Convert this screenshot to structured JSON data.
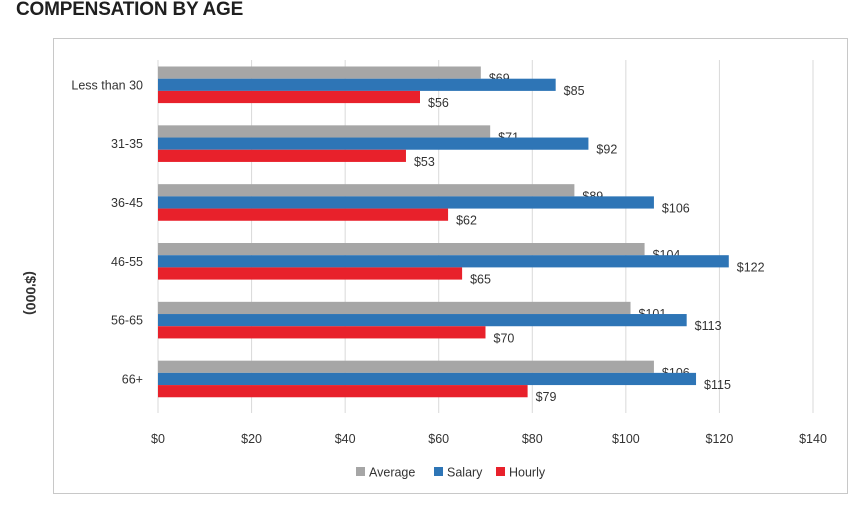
{
  "page": {
    "title": "COMPENSATION BY AGE",
    "y_side_label": "($'000)"
  },
  "colors": {
    "Average": "#a6a6a6",
    "Salary": "#2e75b6",
    "Hourly": "#e8212b",
    "grid": "#d9d9d9"
  },
  "chart_data": {
    "type": "bar",
    "orientation": "horizontal",
    "title": "COMPENSATION BY AGE",
    "categories": [
      "Less than 30",
      "31-35",
      "36-45",
      "46-55",
      "56-65",
      "66+"
    ],
    "series": [
      {
        "name": "Average",
        "values": [
          69,
          71,
          89,
          104,
          101,
          106
        ]
      },
      {
        "name": "Salary",
        "values": [
          85,
          92,
          106,
          122,
          113,
          115
        ]
      },
      {
        "name": "Hourly",
        "values": [
          56,
          53,
          62,
          65,
          70,
          79
        ]
      }
    ],
    "data_labels": [
      [
        "$69",
        "$71",
        "$89",
        "$104",
        "$101",
        "$106"
      ],
      [
        "$85",
        "$92",
        "$106",
        "$122",
        "$113",
        "$115"
      ],
      [
        "$56",
        "$53",
        "$62",
        "$65",
        "$70",
        "$79"
      ]
    ],
    "xlim": [
      0,
      140
    ],
    "x_ticks": [
      0,
      20,
      40,
      60,
      80,
      100,
      120,
      140
    ],
    "x_tick_labels": [
      "$0",
      "$20",
      "$40",
      "$60",
      "$80",
      "$100",
      "$120",
      "$140"
    ],
    "ylabel": "($'000)",
    "grid": true,
    "legend": {
      "placement": "bottom",
      "entries": [
        "Average",
        "Salary",
        "Hourly"
      ]
    }
  }
}
